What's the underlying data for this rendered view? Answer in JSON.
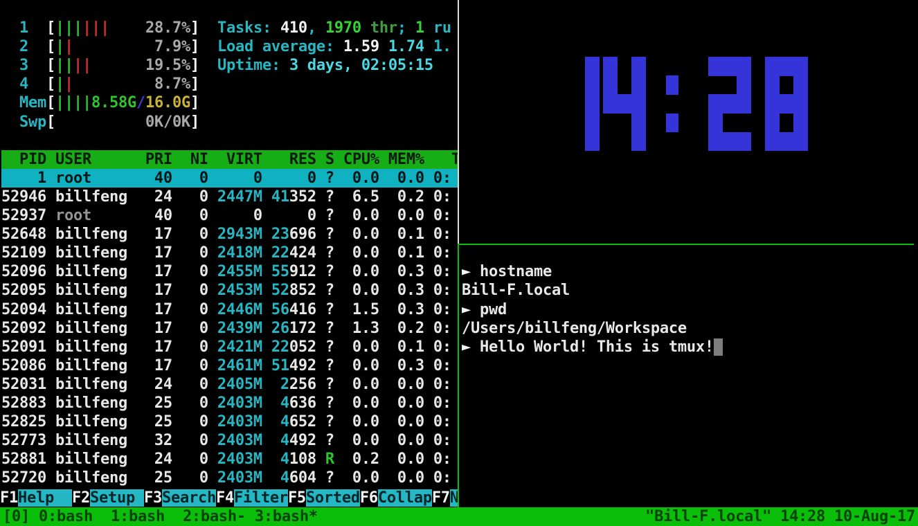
{
  "colors": {
    "background": "#000000",
    "accent_cyan": "#27b6c2",
    "bright_green": "#2fc52f",
    "bar_red": "#d03030",
    "mem_total_yellow": "#c9b236",
    "slash_blue": "#3c3cd4",
    "header_green_bg": "#16ad16",
    "selected_row_cyan_bg": "#10b2c2",
    "fkey_cyan_bg": "#25b7c4",
    "tmux_bar_green": "#0abe0a",
    "clock_blue": "#3434d8",
    "pane_border_white": "#ddddd6",
    "pane_border_active_green": "#0abe0a",
    "cursor_gray": "#7d7d7d"
  },
  "htop": {
    "header_lines": [
      {
        "meter": {
          "name": "cpu1-meter",
          "runs": [
            [
              "  ",
              ""
            ],
            [
              "1  ",
              "cyan"
            ],
            [
              "[",
              "wb"
            ],
            [
              "|||",
              "grn"
            ],
            [
              "|||",
              "red"
            ],
            [
              "    ",
              ""
            ],
            [
              "28.7%",
              "gray"
            ],
            [
              "]",
              "wb"
            ]
          ]
        },
        "summary": {
          "name": "tasks-summary",
          "runs": [
            [
              "  ",
              ""
            ],
            [
              "Tasks: ",
              "cyan"
            ],
            [
              "410",
              "wb"
            ],
            [
              ", ",
              "cyan"
            ],
            [
              "1970",
              "grnb"
            ],
            [
              " thr",
              "dgrn"
            ],
            [
              "; ",
              "cyan"
            ],
            [
              "1",
              "grnb"
            ],
            [
              " ru",
              "cyan"
            ]
          ]
        }
      },
      {
        "meter": {
          "name": "cpu2-meter",
          "runs": [
            [
              "  ",
              ""
            ],
            [
              "2  ",
              "cyan"
            ],
            [
              "[",
              "wb"
            ],
            [
              "|",
              "grn"
            ],
            [
              "|",
              "red"
            ],
            [
              "         ",
              ""
            ],
            [
              "7.9%",
              "gray"
            ],
            [
              "]",
              "wb"
            ]
          ]
        },
        "summary": {
          "name": "load-average-summary",
          "runs": [
            [
              "  ",
              ""
            ],
            [
              "Load average: ",
              "cyan"
            ],
            [
              "1.59 ",
              "wb"
            ],
            [
              "1.74 ",
              "cyanb"
            ],
            [
              "1.",
              "cyan"
            ]
          ]
        }
      },
      {
        "meter": {
          "name": "cpu3-meter",
          "runs": [
            [
              "  ",
              ""
            ],
            [
              "3  ",
              "cyan"
            ],
            [
              "[",
              "wb"
            ],
            [
              "||",
              "grn"
            ],
            [
              "||",
              "red"
            ],
            [
              "      ",
              ""
            ],
            [
              "19.5%",
              "gray"
            ],
            [
              "]",
              "wb"
            ]
          ]
        },
        "summary": {
          "name": "uptime-summary",
          "runs": [
            [
              "  ",
              ""
            ],
            [
              "Uptime: ",
              "cyan"
            ],
            [
              "3 days, 02:05:15",
              "cyanb"
            ]
          ]
        }
      },
      {
        "meter": {
          "name": "cpu4-meter",
          "runs": [
            [
              "  ",
              ""
            ],
            [
              "4  ",
              "cyan"
            ],
            [
              "[",
              "wb"
            ],
            [
              "|",
              "grn"
            ],
            [
              "|",
              "red"
            ],
            [
              "         ",
              ""
            ],
            [
              "8.7%",
              "gray"
            ],
            [
              "]",
              "wb"
            ]
          ]
        }
      },
      {
        "meter": {
          "name": "memory-meter",
          "runs": [
            [
              "  ",
              ""
            ],
            [
              "Mem",
              "cyan"
            ],
            [
              "[",
              "wb"
            ],
            [
              "||||",
              "grn"
            ],
            [
              "8.58G",
              "grn"
            ],
            [
              "/",
              "blu"
            ],
            [
              "16.0G",
              "yel"
            ],
            [
              "]",
              "wb"
            ]
          ]
        }
      },
      {
        "meter": {
          "name": "swap-meter",
          "runs": [
            [
              "  ",
              ""
            ],
            [
              "Swp",
              "cyan"
            ],
            [
              "[",
              "wb"
            ],
            [
              "          ",
              ""
            ],
            [
              "0K/0K",
              "gray"
            ],
            [
              "]",
              "wb"
            ]
          ]
        }
      }
    ],
    "table": {
      "columns": [
        {
          "label": "PID",
          "w": 5,
          "align": "r"
        },
        {
          "label": "USER",
          "w": 9,
          "align": "l"
        },
        {
          "label": "PRI",
          "w": 3,
          "align": "r"
        },
        {
          "label": "NI",
          "w": 3,
          "align": "r"
        },
        {
          "label": "VIRT",
          "w": 5,
          "align": "r"
        },
        {
          "label": "RES",
          "w": 5,
          "align": "r"
        },
        {
          "label": "S",
          "w": 1,
          "align": "l"
        },
        {
          "label": "CPU%",
          "w": 4,
          "align": "r"
        },
        {
          "label": "MEM%",
          "w": 4,
          "align": "r"
        },
        {
          "label": "TIME+",
          "w": 7,
          "align": "r"
        }
      ],
      "rows": [
        {
          "pid": "1",
          "user": "root",
          "pri": "40",
          "ni": "0",
          "virt": "0",
          "res": "0",
          "res_hl": 0,
          "s": "?",
          "cpu": "0.0",
          "mem": "0.0",
          "time": "0:",
          "selected": true
        },
        {
          "pid": "52946",
          "user": "billfeng",
          "pri": "24",
          "ni": "0",
          "virt": "2447M",
          "virt_cyan": true,
          "res": "41352",
          "res_hl": 2,
          "s": "?",
          "cpu": "6.5",
          "mem": "0.2",
          "time": "0:"
        },
        {
          "pid": "52937",
          "user": "root",
          "user_dim": true,
          "pri": "40",
          "ni": "0",
          "virt": "0",
          "res": "0",
          "res_hl": 0,
          "s": "?",
          "cpu": "0.0",
          "mem": "0.0",
          "time": "0:"
        },
        {
          "pid": "52648",
          "user": "billfeng",
          "pri": "17",
          "ni": "0",
          "virt": "2943M",
          "virt_cyan": true,
          "res": "23696",
          "res_hl": 2,
          "s": "?",
          "cpu": "0.0",
          "mem": "0.1",
          "time": "0:"
        },
        {
          "pid": "52109",
          "user": "billfeng",
          "pri": "17",
          "ni": "0",
          "virt": "2418M",
          "virt_cyan": true,
          "res": "22424",
          "res_hl": 2,
          "s": "?",
          "cpu": "0.0",
          "mem": "0.1",
          "time": "0:"
        },
        {
          "pid": "52096",
          "user": "billfeng",
          "pri": "17",
          "ni": "0",
          "virt": "2455M",
          "virt_cyan": true,
          "res": "55912",
          "res_hl": 2,
          "s": "?",
          "cpu": "0.0",
          "mem": "0.3",
          "time": "0:"
        },
        {
          "pid": "52095",
          "user": "billfeng",
          "pri": "17",
          "ni": "0",
          "virt": "2453M",
          "virt_cyan": true,
          "res": "52852",
          "res_hl": 2,
          "s": "?",
          "cpu": "0.0",
          "mem": "0.3",
          "time": "0:"
        },
        {
          "pid": "52094",
          "user": "billfeng",
          "pri": "17",
          "ni": "0",
          "virt": "2446M",
          "virt_cyan": true,
          "res": "56416",
          "res_hl": 2,
          "s": "?",
          "cpu": "1.5",
          "mem": "0.3",
          "time": "0:"
        },
        {
          "pid": "52092",
          "user": "billfeng",
          "pri": "17",
          "ni": "0",
          "virt": "2439M",
          "virt_cyan": true,
          "res": "26172",
          "res_hl": 2,
          "s": "?",
          "cpu": "1.3",
          "mem": "0.2",
          "time": "0:"
        },
        {
          "pid": "52091",
          "user": "billfeng",
          "pri": "17",
          "ni": "0",
          "virt": "2421M",
          "virt_cyan": true,
          "res": "22052",
          "res_hl": 2,
          "s": "?",
          "cpu": "0.0",
          "mem": "0.1",
          "time": "0:"
        },
        {
          "pid": "52086",
          "user": "billfeng",
          "pri": "17",
          "ni": "0",
          "virt": "2461M",
          "virt_cyan": true,
          "res": "51492",
          "res_hl": 2,
          "s": "?",
          "cpu": "0.0",
          "mem": "0.3",
          "time": "0:"
        },
        {
          "pid": "52031",
          "user": "billfeng",
          "pri": "24",
          "ni": "0",
          "virt": "2405M",
          "virt_cyan": true,
          "res": "2256",
          "res_hl": 1,
          "s": "?",
          "cpu": "0.0",
          "mem": "0.0",
          "time": "0:"
        },
        {
          "pid": "52883",
          "user": "billfeng",
          "pri": "25",
          "ni": "0",
          "virt": "2403M",
          "virt_cyan": true,
          "res": "4636",
          "res_hl": 1,
          "s": "?",
          "cpu": "0.0",
          "mem": "0.0",
          "time": "0:"
        },
        {
          "pid": "52825",
          "user": "billfeng",
          "pri": "25",
          "ni": "0",
          "virt": "2403M",
          "virt_cyan": true,
          "res": "4652",
          "res_hl": 1,
          "s": "?",
          "cpu": "0.0",
          "mem": "0.0",
          "time": "0:"
        },
        {
          "pid": "52773",
          "user": "billfeng",
          "pri": "32",
          "ni": "0",
          "virt": "2403M",
          "virt_cyan": true,
          "res": "4492",
          "res_hl": 1,
          "s": "?",
          "cpu": "0.0",
          "mem": "0.0",
          "time": "0:"
        },
        {
          "pid": "52881",
          "user": "billfeng",
          "pri": "24",
          "ni": "0",
          "virt": "2403M",
          "virt_cyan": true,
          "res": "4108",
          "res_hl": 1,
          "s": "R",
          "s_green": true,
          "cpu": "0.2",
          "mem": "0.0",
          "time": "0:"
        },
        {
          "pid": "52720",
          "user": "billfeng",
          "pri": "25",
          "ni": "0",
          "virt": "2403M",
          "virt_cyan": true,
          "res": "4604",
          "res_hl": 1,
          "s": "?",
          "cpu": "0.0",
          "mem": "0.0",
          "time": "0:"
        }
      ]
    },
    "fkeys": [
      {
        "key": "F1",
        "label": "Help  "
      },
      {
        "key": "F2",
        "label": "Setup "
      },
      {
        "key": "F3",
        "label": "Search"
      },
      {
        "key": "F4",
        "label": "Filter"
      },
      {
        "key": "F5",
        "label": "Sorted"
      },
      {
        "key": "F6",
        "label": "Collap"
      },
      {
        "key": "F7",
        "label": "N"
      }
    ]
  },
  "clock": {
    "time": "14:28",
    "color": "#3434d8"
  },
  "terminal": {
    "prompt_symbol": "►",
    "lines": [
      {
        "prompt": true,
        "text": "hostname"
      },
      {
        "prompt": false,
        "text": "Bill-F.local"
      },
      {
        "prompt": true,
        "text": "pwd"
      },
      {
        "prompt": false,
        "text": "/Users/billfeng/Workspace"
      },
      {
        "prompt": true,
        "text": "Hello World! This is tmux!",
        "cursor": true
      }
    ]
  },
  "tmux": {
    "session": "[0]",
    "windows": [
      {
        "label": "0:bash",
        "flag": " "
      },
      {
        "label": "1:bash",
        "flag": " "
      },
      {
        "label": "2:bash",
        "flag": "-"
      },
      {
        "label": "3:bash",
        "flag": "*"
      }
    ],
    "right": "\"Bill-F.local\" 14:28 10-Aug-17"
  }
}
